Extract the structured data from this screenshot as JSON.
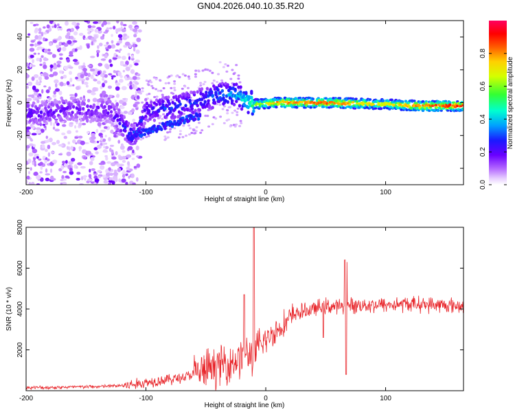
{
  "title": "GN04.2026.040.10.35.R20",
  "chart_data": [
    {
      "type": "heatmap",
      "name": "spectrogram",
      "xlabel": "Height of straight line (km)",
      "ylabel": "Frequency (Hz)",
      "xlim": [
        -200,
        165
      ],
      "ylim": [
        -50,
        50
      ],
      "xticks": [
        -200,
        -100,
        0,
        100
      ],
      "yticks": [
        -40,
        -20,
        0,
        20,
        40
      ],
      "colorbar": {
        "label": "Normalized spectral amplitude",
        "range": [
          0.0,
          1.0
        ],
        "ticks": [
          0.0,
          0.2,
          0.4,
          0.6,
          0.8
        ],
        "tick_labels": [
          "0.0",
          "0.2",
          "0.4",
          "0.6",
          "0.8"
        ]
      },
      "ridge": [
        {
          "x": -185,
          "f": -6,
          "amp": 0.2
        },
        {
          "x": -160,
          "f": -4,
          "amp": 0.18
        },
        {
          "x": -130,
          "f": -5,
          "amp": 0.2
        },
        {
          "x": -110,
          "f": -21,
          "amp": 0.3
        },
        {
          "x": -100,
          "f": -5,
          "amp": 0.25
        },
        {
          "x": -80,
          "f": -3,
          "amp": 0.3
        },
        {
          "x": -60,
          "f": 0,
          "amp": 0.3
        },
        {
          "x": -40,
          "f": 5,
          "amp": 0.35
        },
        {
          "x": -25,
          "f": 5,
          "amp": 0.4
        },
        {
          "x": -10,
          "f": -1,
          "amp": 0.55
        },
        {
          "x": 10,
          "f": 0,
          "amp": 0.75
        },
        {
          "x": 50,
          "f": 0,
          "amp": 0.8
        },
        {
          "x": 100,
          "f": -1,
          "amp": 0.65
        },
        {
          "x": 130,
          "f": -2,
          "amp": 0.8
        },
        {
          "x": 165,
          "f": -2,
          "amp": 0.85
        }
      ]
    },
    {
      "type": "line",
      "name": "snr",
      "xlabel": "Height of straight line (km)",
      "ylabel": "SNR (10 * v/v)",
      "xlim": [
        -200,
        165
      ],
      "ylim": [
        0,
        8000
      ],
      "xticks": [
        -200,
        -100,
        0,
        100
      ],
      "yticks": [
        2000,
        4000,
        6000,
        8000
      ],
      "color": "#e8262b",
      "series": [
        {
          "name": "SNR",
          "x": [
            -200,
            -180,
            -160,
            -140,
            -120,
            -110,
            -100,
            -90,
            -80,
            -70,
            -60,
            -50,
            -40,
            -30,
            -20,
            -15,
            -10,
            -5,
            0,
            10,
            20,
            25,
            30,
            40,
            50,
            60,
            70,
            80,
            100,
            120,
            140,
            165
          ],
          "y": [
            150,
            160,
            180,
            200,
            250,
            300,
            400,
            500,
            550,
            650,
            800,
            1000,
            1200,
            1400,
            1600,
            1700,
            1850,
            2100,
            2500,
            3000,
            3500,
            3800,
            3850,
            4000,
            4150,
            4100,
            4150,
            4200,
            4200,
            4250,
            4200,
            4150
          ]
        }
      ],
      "spikes": [
        {
          "x": -18,
          "y": 4700
        },
        {
          "x": -10,
          "y": 8000
        },
        {
          "x": 63,
          "y": 4300
        },
        {
          "x": 66,
          "y": 6400
        },
        {
          "x": 67.5,
          "y": 6300
        },
        {
          "x": 48,
          "y": 2600
        },
        {
          "x": 67,
          "y": 800
        }
      ]
    }
  ]
}
